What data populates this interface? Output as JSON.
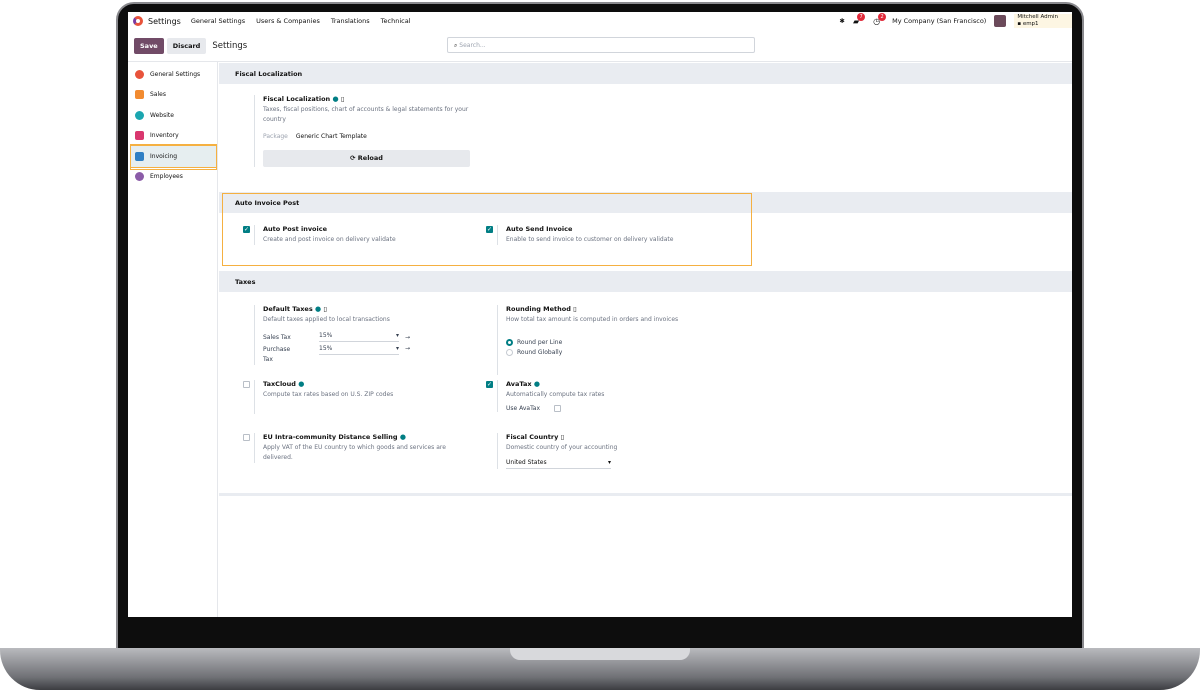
{
  "nav": {
    "app": "Settings",
    "menus": [
      "General Settings",
      "Users & Companies",
      "Translations",
      "Technical"
    ],
    "chat_count": "7",
    "activity_count": "2",
    "company": "My Company (San Francisco)",
    "user_name": "Mitchell Admin",
    "user_db": "emp1"
  },
  "control": {
    "save": "Save",
    "discard": "Discard",
    "title": "Settings",
    "search_placeholder": "Search..."
  },
  "sidebar": {
    "items": [
      {
        "label": "General Settings",
        "color": "#e8533b"
      },
      {
        "label": "Sales",
        "color": "#f28b30"
      },
      {
        "label": "Website",
        "color": "#1ba6b0"
      },
      {
        "label": "Inventory",
        "color": "#d9376e"
      },
      {
        "label": "Invoicing",
        "color": "#2f7fc4"
      },
      {
        "label": "Employees",
        "color": "#8b5ca8"
      }
    ],
    "active": "Invoicing"
  },
  "fiscal": {
    "header": "Fiscal Localization",
    "title": "Fiscal Localization",
    "desc": "Taxes, fiscal positions, chart of accounts & legal statements for your country",
    "package_label": "Package",
    "package_value": "Generic Chart Template",
    "reload": "Reload"
  },
  "auto": {
    "header": "Auto Invoice Post",
    "post_title": "Auto Post invoice",
    "post_desc": "Create and post invoice on delivery validate",
    "post_checked": true,
    "send_title": "Auto Send Invoice",
    "send_desc": "Enable to send invoice to customer on delivery validate",
    "send_checked": true
  },
  "taxes": {
    "header": "Taxes",
    "default_title": "Default Taxes",
    "default_desc": "Default taxes applied to local transactions",
    "sales_label": "Sales Tax",
    "sales_value": "15%",
    "purchase_label": "Purchase Tax",
    "purchase_value": "15%",
    "rounding_title": "Rounding Method",
    "rounding_desc": "How total tax amount is computed in orders and invoices",
    "round_line": "Round per Line",
    "round_global": "Round Globally",
    "rounding_selected": "Round per Line",
    "taxcloud_title": "TaxCloud",
    "taxcloud_desc": "Compute tax rates based on U.S. ZIP codes",
    "taxcloud_checked": false,
    "avatax_title": "AvaTax",
    "avatax_desc": "Automatically compute tax rates",
    "avatax_checked": true,
    "use_avatax": "Use AvaTax",
    "use_avatax_checked": false,
    "eu_title": "EU Intra-community Distance Selling",
    "eu_desc": "Apply VAT of the EU country to which goods and services are delivered.",
    "eu_checked": false,
    "country_title": "Fiscal Country",
    "country_desc": "Domestic country of your accounting",
    "country_value": "United States"
  }
}
